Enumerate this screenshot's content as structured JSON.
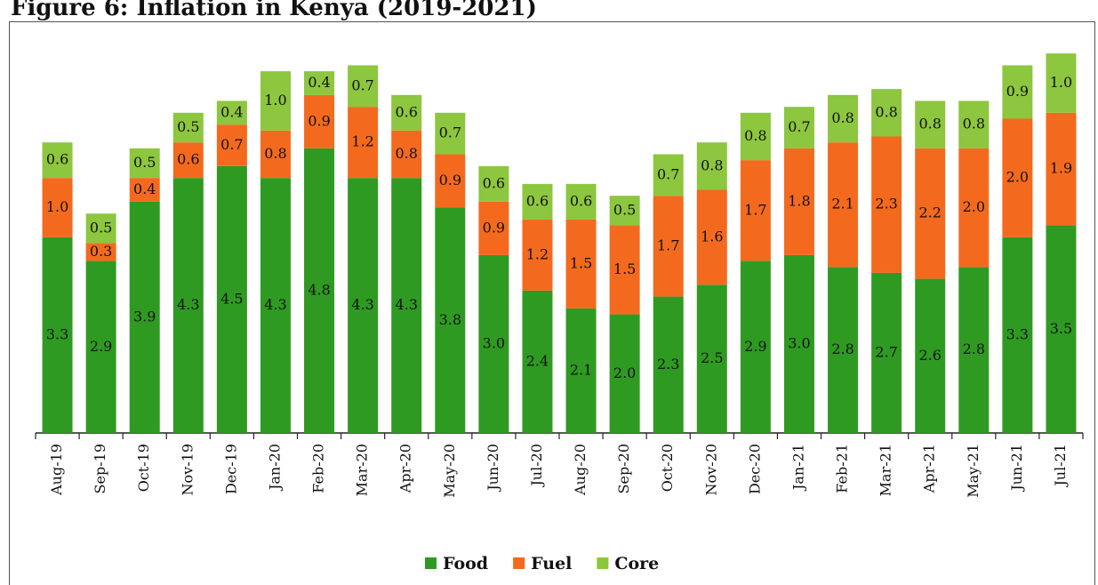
{
  "chart_data": {
    "type": "bar",
    "stacked": true,
    "title": "Figure 6: Inflation in Kenya (2019-2021)",
    "categories": [
      "Aug-19",
      "Sep-19",
      "Oct-19",
      "Nov-19",
      "Dec-19",
      "Jan-20",
      "Feb-20",
      "Mar-20",
      "Apr-20",
      "May-20",
      "Jun-20",
      "Jul-20",
      "Aug-20",
      "Sep-20",
      "Oct-20",
      "Nov-20",
      "Dec-20",
      "Jan-21",
      "Feb-21",
      "Mar-21",
      "Apr-21",
      "May-21",
      "Jun-21",
      "Jul-21"
    ],
    "series": [
      {
        "name": "Food",
        "color": "#2f9a22",
        "values": [
          3.3,
          2.9,
          3.9,
          4.3,
          4.5,
          4.3,
          4.8,
          4.3,
          4.3,
          3.8,
          3.0,
          2.4,
          2.1,
          2.0,
          2.3,
          2.5,
          2.9,
          3.0,
          2.8,
          2.7,
          2.6,
          2.8,
          3.3,
          3.5
        ],
        "value_labels": [
          "3.3",
          "2.9",
          "3.9",
          "4.3",
          "4.5",
          "4.3",
          "4.8",
          "4.3",
          "4.3",
          "3.8",
          "3.0",
          "2.4",
          "2.1",
          "2.0",
          "2.3",
          "2.5",
          "2.9",
          "3.0",
          "2.8",
          "2.7",
          "2.6",
          "2.8",
          "3.3",
          "3.5"
        ]
      },
      {
        "name": "Fuel",
        "color": "#f36a1e",
        "values": [
          1.0,
          0.3,
          0.4,
          0.6,
          0.7,
          0.8,
          0.9,
          1.2,
          0.8,
          0.9,
          0.9,
          1.2,
          1.5,
          1.5,
          1.7,
          1.6,
          1.7,
          1.8,
          2.1,
          2.3,
          2.2,
          2.0,
          2.0,
          1.9
        ],
        "value_labels": [
          "1.0",
          "0.3",
          "0.4",
          "0.6",
          "0.7",
          "0.8",
          "0.9",
          "1.2",
          "0.8",
          "0.9",
          "0.9",
          "1.2",
          "1.5",
          "1.5",
          "1.7",
          "1.6",
          "1.7",
          "1.8",
          "2.1",
          "2.3",
          "2.2",
          "2.0",
          "2.0",
          "1.9"
        ]
      },
      {
        "name": "Core",
        "color": "#8dc63f",
        "values": [
          0.6,
          0.5,
          0.5,
          0.5,
          0.4,
          1.0,
          0.4,
          0.7,
          0.6,
          0.7,
          0.6,
          0.6,
          0.6,
          0.5,
          0.7,
          0.8,
          0.8,
          0.7,
          0.8,
          0.8,
          0.8,
          0.8,
          0.9,
          1.0
        ],
        "value_labels": [
          "0.6",
          "0.5",
          "0.5",
          "0.5",
          "0.4",
          "1.0",
          "0.4",
          "0.7",
          "0.6",
          "0.7",
          "0.6",
          "0.6",
          "0.6",
          "0.5",
          "0.7",
          "0.8",
          "0.8",
          "0.7",
          "0.8",
          "0.8",
          "0.8",
          "0.8",
          "0.9",
          "1.0"
        ]
      }
    ]
  }
}
